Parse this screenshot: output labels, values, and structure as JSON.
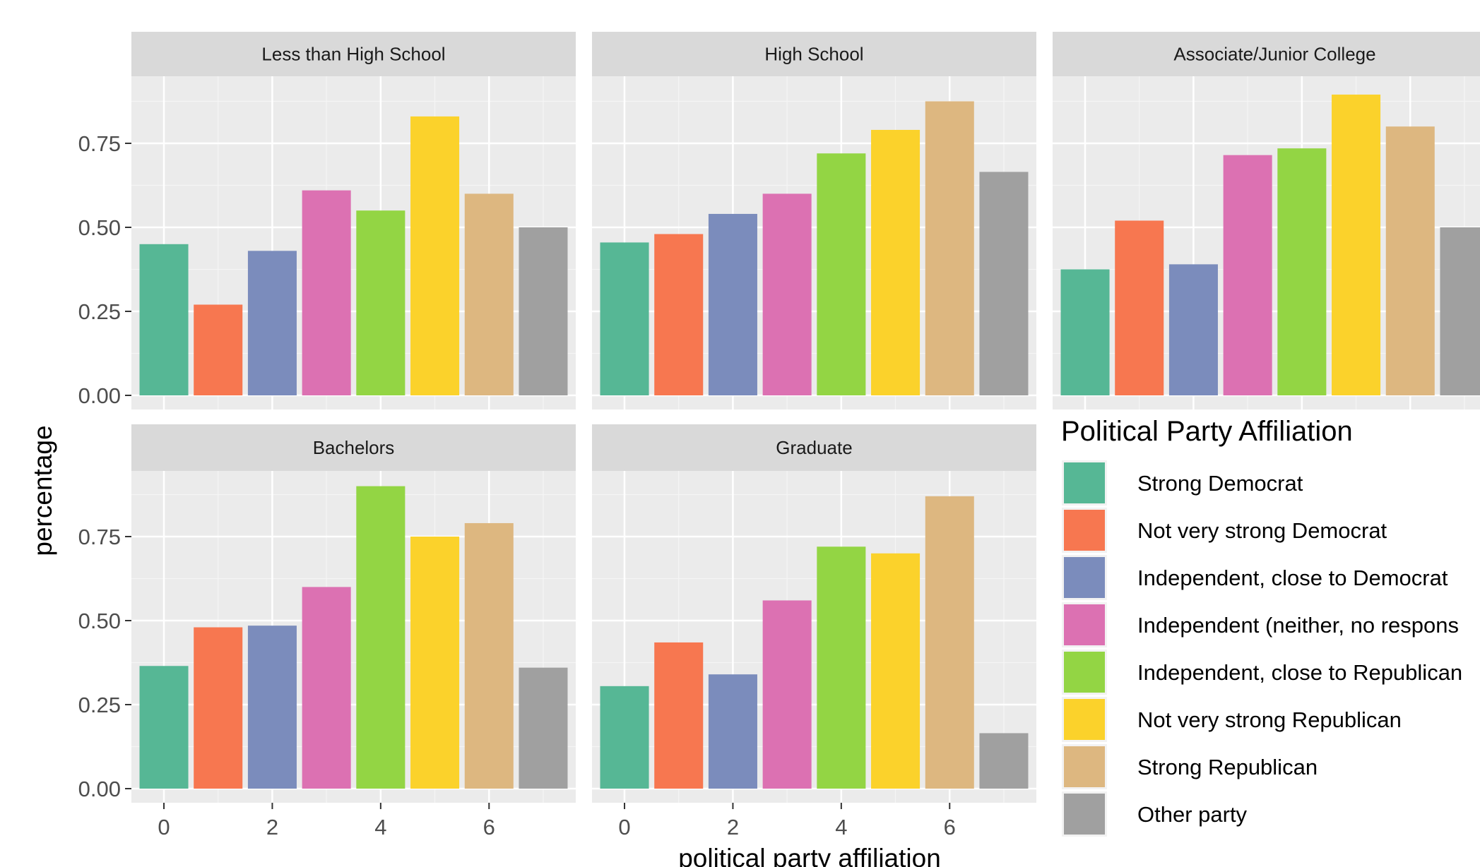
{
  "chart_data": {
    "type": "bar",
    "facet_by": "education",
    "xlabel": "political party affiliation",
    "ylabel": "percentage",
    "ylim": [
      0,
      0.95
    ],
    "xlim": [
      -0.6,
      7.6
    ],
    "x_ticks": [
      0,
      2,
      4,
      6
    ],
    "y_ticks": [
      0.0,
      0.25,
      0.5,
      0.75
    ],
    "y_tick_labels": [
      "0.00",
      "0.25",
      "0.50",
      "0.75"
    ],
    "grid": true,
    "legend": {
      "title": "Political Party Affiliation",
      "position": "right",
      "entries": [
        {
          "label": "Strong Democrat",
          "color": "#56b795"
        },
        {
          "label": "Not very strong Democrat",
          "color": "#f77750"
        },
        {
          "label": "Independent, close to Democrat",
          "color": "#7b8cbc"
        },
        {
          "label": "Independent (neither, no respons",
          "color": "#dc71b2"
        },
        {
          "label": "Independent, close to Republican",
          "color": "#93d544"
        },
        {
          "label": "Not very strong Republican",
          "color": "#fbd22b"
        },
        {
          "label": "Strong Republican",
          "color": "#ddb780"
        },
        {
          "label": "Other party",
          "color": "#a0a0a0"
        }
      ]
    },
    "x": [
      0,
      1,
      2,
      3,
      4,
      5,
      6,
      7
    ],
    "panels": [
      {
        "facet": "Less than High School",
        "values": [
          0.45,
          0.27,
          0.43,
          0.61,
          0.55,
          0.83,
          0.6,
          0.5
        ]
      },
      {
        "facet": "High School",
        "values": [
          0.455,
          0.48,
          0.54,
          0.6,
          0.72,
          0.79,
          0.875,
          0.665
        ]
      },
      {
        "facet": "Associate/Junior College",
        "values": [
          0.375,
          0.52,
          0.39,
          0.715,
          0.735,
          0.895,
          0.8,
          0.5
        ]
      },
      {
        "facet": "Bachelors",
        "values": [
          0.365,
          0.48,
          0.485,
          0.6,
          0.9,
          0.75,
          0.79,
          0.36
        ]
      },
      {
        "facet": "Graduate",
        "values": [
          0.305,
          0.435,
          0.34,
          0.56,
          0.72,
          0.7,
          0.87,
          0.165
        ]
      }
    ]
  }
}
